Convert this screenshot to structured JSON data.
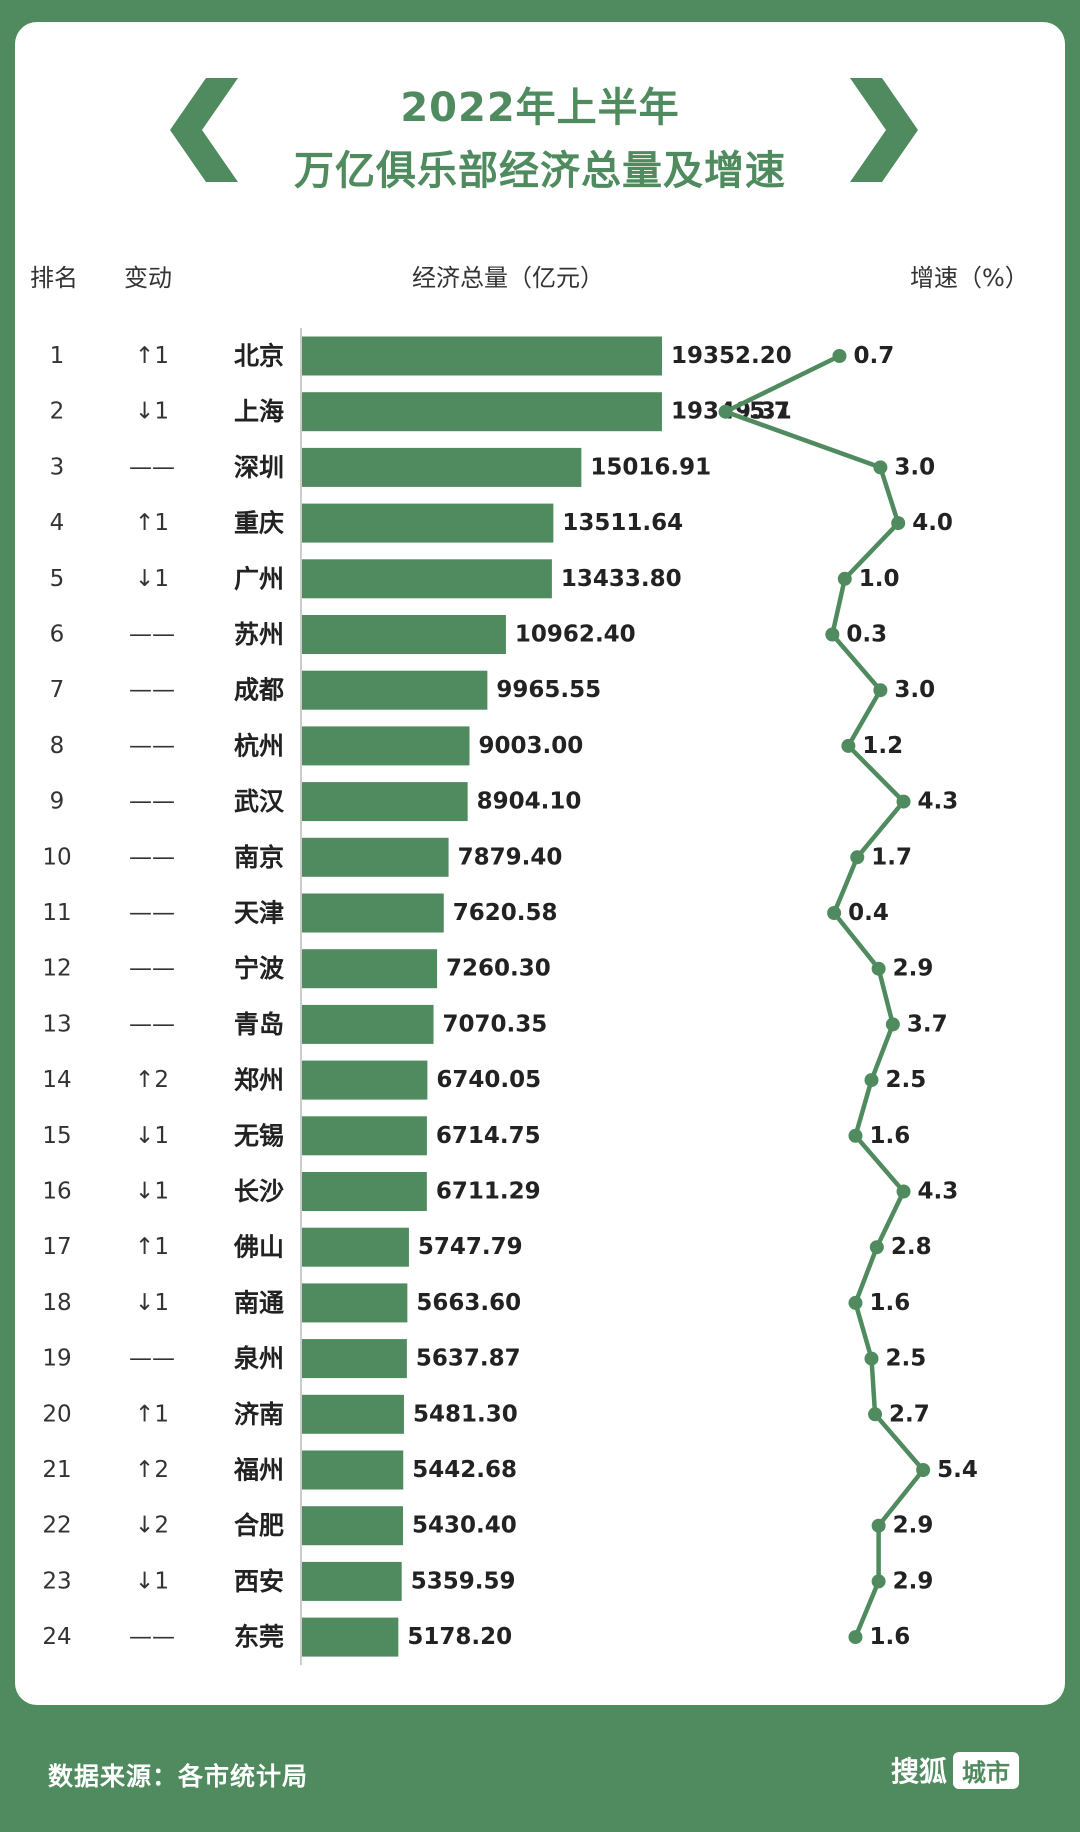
{
  "title": {
    "line1": "2022年上半年",
    "line2": "万亿俱乐部经济总量及增速"
  },
  "headers": {
    "rank": "排名",
    "change": "变动",
    "gdp": "经济总量（亿元）",
    "growth": "增速（%）"
  },
  "footer": {
    "source": "数据来源：各市统计局",
    "brand": "搜狐",
    "brand_tag": "城市"
  },
  "colors": {
    "accent": "#4f8b5e",
    "background": "#ffffff"
  },
  "icons": {
    "left": "chevron-left-icon",
    "right": "chevron-right-icon"
  },
  "chart_data": {
    "type": "bar",
    "rows": [
      {
        "rank": "1",
        "change": "↑1",
        "city": "北京",
        "gdp": 19352.2,
        "gdp_label": "19352.20",
        "growth": 0.7,
        "growth_label": "0.7"
      },
      {
        "rank": "2",
        "change": "↓1",
        "city": "上海",
        "gdp": 19349.31,
        "gdp_label": "19349.31",
        "growth": -5.7,
        "growth_label": "-5.7"
      },
      {
        "rank": "3",
        "change": "——",
        "city": "深圳",
        "gdp": 15016.91,
        "gdp_label": "15016.91",
        "growth": 3.0,
        "growth_label": "3.0"
      },
      {
        "rank": "4",
        "change": "↑1",
        "city": "重庆",
        "gdp": 13511.64,
        "gdp_label": "13511.64",
        "growth": 4.0,
        "growth_label": "4.0"
      },
      {
        "rank": "5",
        "change": "↓1",
        "city": "广州",
        "gdp": 13433.8,
        "gdp_label": "13433.80",
        "growth": 1.0,
        "growth_label": "1.0"
      },
      {
        "rank": "6",
        "change": "——",
        "city": "苏州",
        "gdp": 10962.4,
        "gdp_label": "10962.40",
        "growth": 0.3,
        "growth_label": "0.3"
      },
      {
        "rank": "7",
        "change": "——",
        "city": "成都",
        "gdp": 9965.55,
        "gdp_label": "9965.55",
        "growth": 3.0,
        "growth_label": "3.0"
      },
      {
        "rank": "8",
        "change": "——",
        "city": "杭州",
        "gdp": 9003.0,
        "gdp_label": "9003.00",
        "growth": 1.2,
        "growth_label": "1.2"
      },
      {
        "rank": "9",
        "change": "——",
        "city": "武汉",
        "gdp": 8904.1,
        "gdp_label": "8904.10",
        "growth": 4.3,
        "growth_label": "4.3"
      },
      {
        "rank": "10",
        "change": "——",
        "city": "南京",
        "gdp": 7879.4,
        "gdp_label": "7879.40",
        "growth": 1.7,
        "growth_label": "1.7"
      },
      {
        "rank": "11",
        "change": "——",
        "city": "天津",
        "gdp": 7620.58,
        "gdp_label": "7620.58",
        "growth": 0.4,
        "growth_label": "0.4"
      },
      {
        "rank": "12",
        "change": "——",
        "city": "宁波",
        "gdp": 7260.3,
        "gdp_label": "7260.30",
        "growth": 2.9,
        "growth_label": "2.9"
      },
      {
        "rank": "13",
        "change": "——",
        "city": "青岛",
        "gdp": 7070.35,
        "gdp_label": "7070.35",
        "growth": 3.7,
        "growth_label": "3.7"
      },
      {
        "rank": "14",
        "change": "↑2",
        "city": "郑州",
        "gdp": 6740.05,
        "gdp_label": "6740.05",
        "growth": 2.5,
        "growth_label": "2.5"
      },
      {
        "rank": "15",
        "change": "↓1",
        "city": "无锡",
        "gdp": 6714.75,
        "gdp_label": "6714.75",
        "growth": 1.6,
        "growth_label": "1.6"
      },
      {
        "rank": "16",
        "change": "↓1",
        "city": "长沙",
        "gdp": 6711.29,
        "gdp_label": "6711.29",
        "growth": 4.3,
        "growth_label": "4.3"
      },
      {
        "rank": "17",
        "change": "↑1",
        "city": "佛山",
        "gdp": 5747.79,
        "gdp_label": "5747.79",
        "growth": 2.8,
        "growth_label": "2.8"
      },
      {
        "rank": "18",
        "change": "↓1",
        "city": "南通",
        "gdp": 5663.6,
        "gdp_label": "5663.60",
        "growth": 1.6,
        "growth_label": "1.6"
      },
      {
        "rank": "19",
        "change": "——",
        "city": "泉州",
        "gdp": 5637.87,
        "gdp_label": "5637.87",
        "growth": 2.5,
        "growth_label": "2.5"
      },
      {
        "rank": "20",
        "change": "↑1",
        "city": "济南",
        "gdp": 5481.3,
        "gdp_label": "5481.30",
        "growth": 2.7,
        "growth_label": "2.7"
      },
      {
        "rank": "21",
        "change": "↑2",
        "city": "福州",
        "gdp": 5442.68,
        "gdp_label": "5442.68",
        "growth": 5.4,
        "growth_label": "5.4"
      },
      {
        "rank": "22",
        "change": "↓2",
        "city": "合肥",
        "gdp": 5430.4,
        "gdp_label": "5430.40",
        "growth": 2.9,
        "growth_label": "2.9"
      },
      {
        "rank": "23",
        "change": "↓1",
        "city": "西安",
        "gdp": 5359.59,
        "gdp_label": "5359.59",
        "growth": 2.9,
        "growth_label": "2.9"
      },
      {
        "rank": "24",
        "change": "——",
        "city": "东莞",
        "gdp": 5178.2,
        "gdp_label": "5178.20",
        "growth": 1.6,
        "growth_label": "1.6"
      }
    ]
  }
}
